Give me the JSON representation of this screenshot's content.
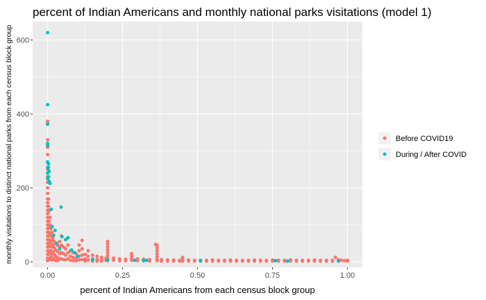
{
  "chart_data": {
    "type": "scatter",
    "title": "percent of Indian Americans and monthly national parks visitations (model 1)",
    "xlabel": "percent of Indian Americans from each census block group",
    "ylabel": "monthly visitations to distinct national parks from each census block group",
    "xlim": [
      -0.05,
      1.05
    ],
    "ylim": [
      -15,
      650
    ],
    "xticks": [
      0,
      0.25,
      0.5,
      0.75,
      1.0
    ],
    "xtick_labels": [
      "0.00",
      "0.25",
      "0.50",
      "0.75",
      "1.00"
    ],
    "yticks": [
      0,
      200,
      400,
      600
    ],
    "ytick_labels": [
      "0",
      "200",
      "400",
      "600"
    ],
    "grid": true,
    "legend_position": "right",
    "series": [
      {
        "name": "Before COVID19",
        "color": "#F8766D",
        "points": [
          [
            0.0,
            380
          ],
          [
            0.0,
            375
          ],
          [
            0.0,
            330
          ],
          [
            0.0,
            310
          ],
          [
            0.0,
            290
          ],
          [
            0.0,
            270
          ],
          [
            0.0,
            250
          ],
          [
            0.0,
            230
          ],
          [
            0.0,
            215
          ],
          [
            0.0,
            200
          ],
          [
            0.0,
            185
          ],
          [
            0.0,
            170
          ],
          [
            0.0,
            160
          ],
          [
            0.0,
            150
          ],
          [
            0.0,
            140
          ],
          [
            0.0,
            130
          ],
          [
            0.0,
            120
          ],
          [
            0.0,
            110
          ],
          [
            0.0,
            100
          ],
          [
            0.0,
            90
          ],
          [
            0.0,
            80
          ],
          [
            0.0,
            70
          ],
          [
            0.0,
            60
          ],
          [
            0.0,
            50
          ],
          [
            0.0,
            40
          ],
          [
            0.0,
            30
          ],
          [
            0.0,
            20
          ],
          [
            0.0,
            10
          ],
          [
            0.0,
            3
          ],
          [
            0.003,
            170
          ],
          [
            0.003,
            150
          ],
          [
            0.003,
            135
          ],
          [
            0.003,
            120
          ],
          [
            0.003,
            100
          ],
          [
            0.003,
            80
          ],
          [
            0.003,
            60
          ],
          [
            0.003,
            40
          ],
          [
            0.003,
            20
          ],
          [
            0.005,
            140
          ],
          [
            0.005,
            110
          ],
          [
            0.005,
            95
          ],
          [
            0.005,
            70
          ],
          [
            0.005,
            45
          ],
          [
            0.005,
            25
          ],
          [
            0.005,
            5
          ],
          [
            0.008,
            120
          ],
          [
            0.008,
            100
          ],
          [
            0.008,
            75
          ],
          [
            0.008,
            55
          ],
          [
            0.008,
            30
          ],
          [
            0.008,
            10
          ],
          [
            0.011,
            90
          ],
          [
            0.011,
            70
          ],
          [
            0.011,
            50
          ],
          [
            0.011,
            30
          ],
          [
            0.011,
            12
          ],
          [
            0.014,
            80
          ],
          [
            0.014,
            60
          ],
          [
            0.014,
            40
          ],
          [
            0.014,
            20
          ],
          [
            0.014,
            5
          ],
          [
            0.018,
            65
          ],
          [
            0.018,
            45
          ],
          [
            0.018,
            28
          ],
          [
            0.018,
            10
          ],
          [
            0.022,
            55
          ],
          [
            0.022,
            38
          ],
          [
            0.022,
            20
          ],
          [
            0.022,
            6
          ],
          [
            0.027,
            50
          ],
          [
            0.027,
            32
          ],
          [
            0.027,
            15
          ],
          [
            0.027,
            4
          ],
          [
            0.033,
            45
          ],
          [
            0.033,
            28
          ],
          [
            0.033,
            12
          ],
          [
            0.033,
            3
          ],
          [
            0.04,
            55
          ],
          [
            0.04,
            40
          ],
          [
            0.04,
            22
          ],
          [
            0.04,
            8
          ],
          [
            0.046,
            70
          ],
          [
            0.046,
            45
          ],
          [
            0.046,
            25
          ],
          [
            0.046,
            8
          ],
          [
            0.053,
            40
          ],
          [
            0.053,
            22
          ],
          [
            0.053,
            6
          ],
          [
            0.06,
            35
          ],
          [
            0.06,
            18
          ],
          [
            0.06,
            5
          ],
          [
            0.068,
            65
          ],
          [
            0.068,
            45
          ],
          [
            0.068,
            25
          ],
          [
            0.068,
            8
          ],
          [
            0.076,
            30
          ],
          [
            0.076,
            15
          ],
          [
            0.076,
            4
          ],
          [
            0.085,
            25
          ],
          [
            0.085,
            12
          ],
          [
            0.085,
            3
          ],
          [
            0.095,
            22
          ],
          [
            0.095,
            10
          ],
          [
            0.095,
            3
          ],
          [
            0.105,
            45
          ],
          [
            0.105,
            30
          ],
          [
            0.105,
            15
          ],
          [
            0.105,
            5
          ],
          [
            0.115,
            58
          ],
          [
            0.115,
            35
          ],
          [
            0.115,
            18
          ],
          [
            0.115,
            6
          ],
          [
            0.125,
            20
          ],
          [
            0.125,
            8
          ],
          [
            0.125,
            2
          ],
          [
            0.135,
            30
          ],
          [
            0.135,
            15
          ],
          [
            0.135,
            5
          ],
          [
            0.15,
            18
          ],
          [
            0.15,
            8
          ],
          [
            0.15,
            2
          ],
          [
            0.165,
            15
          ],
          [
            0.165,
            6
          ],
          [
            0.165,
            2
          ],
          [
            0.18,
            12
          ],
          [
            0.18,
            5
          ],
          [
            0.18,
            2
          ],
          [
            0.195,
            10
          ],
          [
            0.195,
            4
          ],
          [
            0.2,
            55
          ],
          [
            0.2,
            48
          ],
          [
            0.2,
            40
          ],
          [
            0.2,
            32
          ],
          [
            0.2,
            24
          ],
          [
            0.2,
            16
          ],
          [
            0.2,
            8
          ],
          [
            0.2,
            3
          ],
          [
            0.22,
            10
          ],
          [
            0.22,
            4
          ],
          [
            0.24,
            8
          ],
          [
            0.24,
            3
          ],
          [
            0.26,
            7
          ],
          [
            0.26,
            3
          ],
          [
            0.28,
            22
          ],
          [
            0.28,
            16
          ],
          [
            0.28,
            10
          ],
          [
            0.28,
            4
          ],
          [
            0.3,
            8
          ],
          [
            0.3,
            3
          ],
          [
            0.32,
            7
          ],
          [
            0.32,
            3
          ],
          [
            0.34,
            6
          ],
          [
            0.34,
            2
          ],
          [
            0.36,
            47
          ],
          [
            0.365,
            45
          ],
          [
            0.365,
            38
          ],
          [
            0.365,
            30
          ],
          [
            0.365,
            22
          ],
          [
            0.365,
            14
          ],
          [
            0.365,
            7
          ],
          [
            0.365,
            3
          ],
          [
            0.38,
            6
          ],
          [
            0.38,
            2
          ],
          [
            0.4,
            5
          ],
          [
            0.4,
            2
          ],
          [
            0.42,
            5
          ],
          [
            0.42,
            2
          ],
          [
            0.44,
            4
          ],
          [
            0.44,
            2
          ],
          [
            0.45,
            12
          ],
          [
            0.45,
            6
          ],
          [
            0.45,
            2
          ],
          [
            0.47,
            5
          ],
          [
            0.47,
            2
          ],
          [
            0.49,
            4
          ],
          [
            0.49,
            2
          ],
          [
            0.51,
            4
          ],
          [
            0.51,
            2
          ],
          [
            0.53,
            4
          ],
          [
            0.53,
            2
          ],
          [
            0.55,
            5
          ],
          [
            0.55,
            2
          ],
          [
            0.57,
            4
          ],
          [
            0.57,
            2
          ],
          [
            0.59,
            4
          ],
          [
            0.59,
            2
          ],
          [
            0.61,
            5
          ],
          [
            0.61,
            2
          ],
          [
            0.63,
            4
          ],
          [
            0.63,
            2
          ],
          [
            0.65,
            4
          ],
          [
            0.65,
            2
          ],
          [
            0.67,
            4
          ],
          [
            0.67,
            2
          ],
          [
            0.69,
            5
          ],
          [
            0.69,
            2
          ],
          [
            0.71,
            4
          ],
          [
            0.71,
            2
          ],
          [
            0.73,
            4
          ],
          [
            0.73,
            2
          ],
          [
            0.75,
            5
          ],
          [
            0.75,
            2
          ],
          [
            0.77,
            4
          ],
          [
            0.77,
            2
          ],
          [
            0.79,
            4
          ],
          [
            0.79,
            2
          ],
          [
            0.81,
            5
          ],
          [
            0.81,
            2
          ],
          [
            0.83,
            4
          ],
          [
            0.83,
            2
          ],
          [
            0.85,
            4
          ],
          [
            0.85,
            2
          ],
          [
            0.87,
            4
          ],
          [
            0.87,
            2
          ],
          [
            0.89,
            5
          ],
          [
            0.89,
            2
          ],
          [
            0.91,
            4
          ],
          [
            0.91,
            2
          ],
          [
            0.93,
            4
          ],
          [
            0.93,
            2
          ],
          [
            0.95,
            4
          ],
          [
            0.95,
            2
          ],
          [
            0.96,
            12
          ],
          [
            0.97,
            6
          ],
          [
            0.98,
            4
          ],
          [
            0.99,
            3
          ],
          [
            1.0,
            4
          ],
          [
            1.0,
            2
          ]
        ]
      },
      {
        "name": "During / After COVID",
        "color": "#00BFC4",
        "points": [
          [
            0.0,
            620
          ],
          [
            0.0,
            425
          ],
          [
            0.0,
            372
          ],
          [
            0.0,
            320
          ],
          [
            0.0,
            315
          ],
          [
            0.0,
            270
          ],
          [
            0.0,
            255
          ],
          [
            0.0,
            240
          ],
          [
            0.0,
            225
          ],
          [
            0.003,
            265
          ],
          [
            0.003,
            255
          ],
          [
            0.005,
            245
          ],
          [
            0.005,
            218
          ],
          [
            0.008,
            212
          ],
          [
            0.003,
            230
          ],
          [
            0.012,
            142
          ],
          [
            0.015,
            95
          ],
          [
            0.02,
            72
          ],
          [
            0.025,
            85
          ],
          [
            0.03,
            50
          ],
          [
            0.04,
            35
          ],
          [
            0.045,
            148
          ],
          [
            0.048,
            68
          ],
          [
            0.06,
            60
          ],
          [
            0.068,
            65
          ],
          [
            0.08,
            32
          ],
          [
            0.09,
            25
          ],
          [
            0.1,
            15
          ],
          [
            0.2,
            5
          ],
          [
            0.29,
            4
          ],
          [
            0.32,
            3
          ],
          [
            0.51,
            3
          ],
          [
            0.76,
            3
          ],
          [
            0.8,
            2
          ],
          [
            0.97,
            2
          ],
          [
            0.33,
            4
          ],
          [
            0.15,
            6
          ]
        ]
      }
    ]
  }
}
